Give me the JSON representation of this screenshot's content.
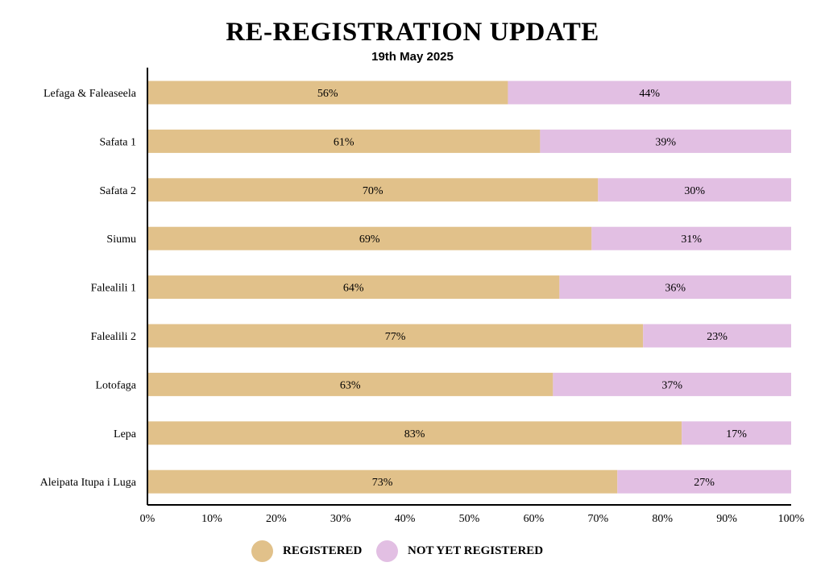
{
  "chart_data": {
    "type": "bar",
    "orientation": "horizontal",
    "stacked": "percent",
    "title": "RE-REGISTRATION UPDATE",
    "subtitle": "19th May 2025",
    "categories": [
      "Lefaga & Faleaseela",
      "Safata 1",
      "Safata 2",
      "Siumu",
      "Falealili 1",
      "Falealili 2",
      "Lotofaga",
      "Lepa",
      "Aleipata Itupa i Luga"
    ],
    "series": [
      {
        "name": "REGISTERED",
        "color": "#e1c18a",
        "values": [
          56,
          61,
          70,
          69,
          64,
          77,
          63,
          83,
          73
        ],
        "labels": [
          "56%",
          "61%",
          "70%",
          "69%",
          "64%",
          "77%",
          "63%",
          "83%",
          "73%"
        ]
      },
      {
        "name": "NOT YET REGISTERED",
        "color": "#e2bfe3",
        "values": [
          44,
          39,
          30,
          31,
          36,
          23,
          37,
          17,
          27
        ],
        "labels": [
          "44%",
          "39%",
          "30%",
          "31%",
          "36%",
          "23%",
          "37%",
          "17%",
          "27%"
        ]
      }
    ],
    "xlim": [
      0,
      100
    ],
    "xticks": [
      "0%",
      "10%",
      "20%",
      "30%",
      "40%",
      "50%",
      "60%",
      "70%",
      "80%",
      "90%",
      "100%"
    ],
    "grid": false,
    "legend_position": "bottom"
  }
}
